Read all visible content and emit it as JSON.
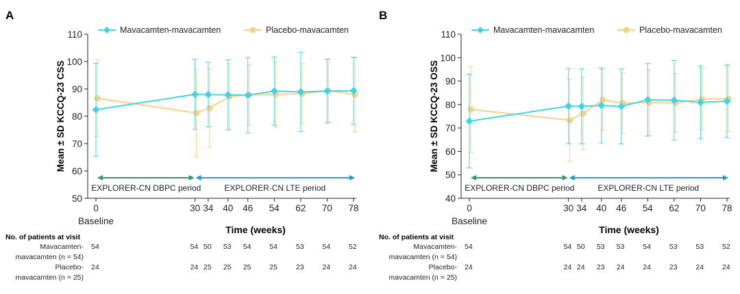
{
  "colors": {
    "mava": "#3fd3e6",
    "placebo": "#f8cf86",
    "dbpc": "#2a9b6a",
    "lte": "#1f9ad6",
    "axis": "#222222"
  },
  "table": {
    "header": "No. of patients at visit",
    "row1_label": [
      "Mavacamten-",
      "mavacamten (n = 54)"
    ],
    "row2_label": [
      "Placebo-",
      "mavacamten (n = 25)"
    ]
  },
  "chart_data": [
    {
      "panel_label": "A",
      "type": "line",
      "ylabel": "Mean ± SD KCCQ-23 CSS",
      "xlabel": "Time (weeks)",
      "baseline_label": "Baseline",
      "ylim": [
        50,
        110
      ],
      "yticks": [
        50,
        60,
        70,
        80,
        90,
        100,
        110
      ],
      "x": [
        0,
        30,
        34,
        40,
        46,
        54,
        62,
        70,
        78
      ],
      "period_labels": [
        "EXPLORER-CN DBPC period",
        "EXPLORER-CN LTE period"
      ],
      "series": [
        {
          "name": "Mavacamten-mavacamten",
          "x": [
            0,
            30,
            34,
            40,
            46,
            54,
            62,
            70,
            78
          ],
          "values": [
            82.4,
            88.0,
            87.9,
            87.8,
            87.7,
            89.2,
            88.9,
            89.2,
            89.3
          ],
          "sd": [
            17,
            12.8,
            11.8,
            12.8,
            13.8,
            12.5,
            14.5,
            11.7,
            12.3
          ]
        },
        {
          "name": "Placebo-mavacamten",
          "x": [
            0,
            30,
            34,
            40,
            46,
            54,
            62,
            70,
            78
          ],
          "values": [
            86.6,
            81.2,
            83.0,
            87.2,
            87.8,
            88.0,
            88.2,
            89.4,
            87.9
          ],
          "sd": [
            14,
            16,
            14.5,
            12,
            11,
            12,
            11,
            11.5,
            13.5
          ]
        }
      ],
      "counts_mava": [
        "54",
        "54",
        "50",
        "53",
        "54",
        "54",
        "53",
        "54",
        "52"
      ],
      "counts_placebo": [
        "24",
        "24",
        "25",
        "25",
        "25",
        "25",
        "23",
        "24",
        "24"
      ]
    },
    {
      "panel_label": "B",
      "type": "line",
      "ylabel": "Mean ± SD KCCQ-23 OSS",
      "xlabel": "Time (weeks)",
      "baseline_label": "Baseline",
      "ylim": [
        40,
        110
      ],
      "yticks": [
        40,
        50,
        60,
        70,
        80,
        90,
        100,
        110
      ],
      "x": [
        0,
        30,
        34,
        40,
        46,
        54,
        62,
        70,
        78
      ],
      "period_labels": [
        "EXPLORER-CN DBPC period",
        "EXPLORER-CN LTE period"
      ],
      "series": [
        {
          "name": "Mavacamten-mavacamten",
          "x": [
            0,
            30,
            34,
            40,
            46,
            54,
            62,
            70,
            78
          ],
          "values": [
            72.9,
            79.3,
            79.2,
            79.6,
            79.2,
            82.0,
            81.8,
            80.9,
            81.4
          ],
          "sd": [
            20,
            16,
            16,
            16,
            16,
            15.5,
            17,
            15.5,
            15.5
          ]
        },
        {
          "name": "Placebo-mavacamten",
          "x": [
            0,
            30,
            34,
            40,
            46,
            54,
            62,
            70,
            78
          ],
          "values": [
            77.9,
            73.3,
            76.2,
            82.0,
            80.6,
            80.8,
            80.7,
            82.3,
            82.5
          ],
          "sd": [
            18.5,
            17.5,
            15.5,
            13,
            13,
            14,
            12.5,
            13,
            14
          ]
        }
      ],
      "counts_mava": [
        "54",
        "54",
        "50",
        "53",
        "53",
        "54",
        "53",
        "53",
        "52"
      ],
      "counts_placebo": [
        "24",
        "24",
        "24",
        "23",
        "24",
        "24",
        "23",
        "24",
        "24"
      ]
    }
  ]
}
